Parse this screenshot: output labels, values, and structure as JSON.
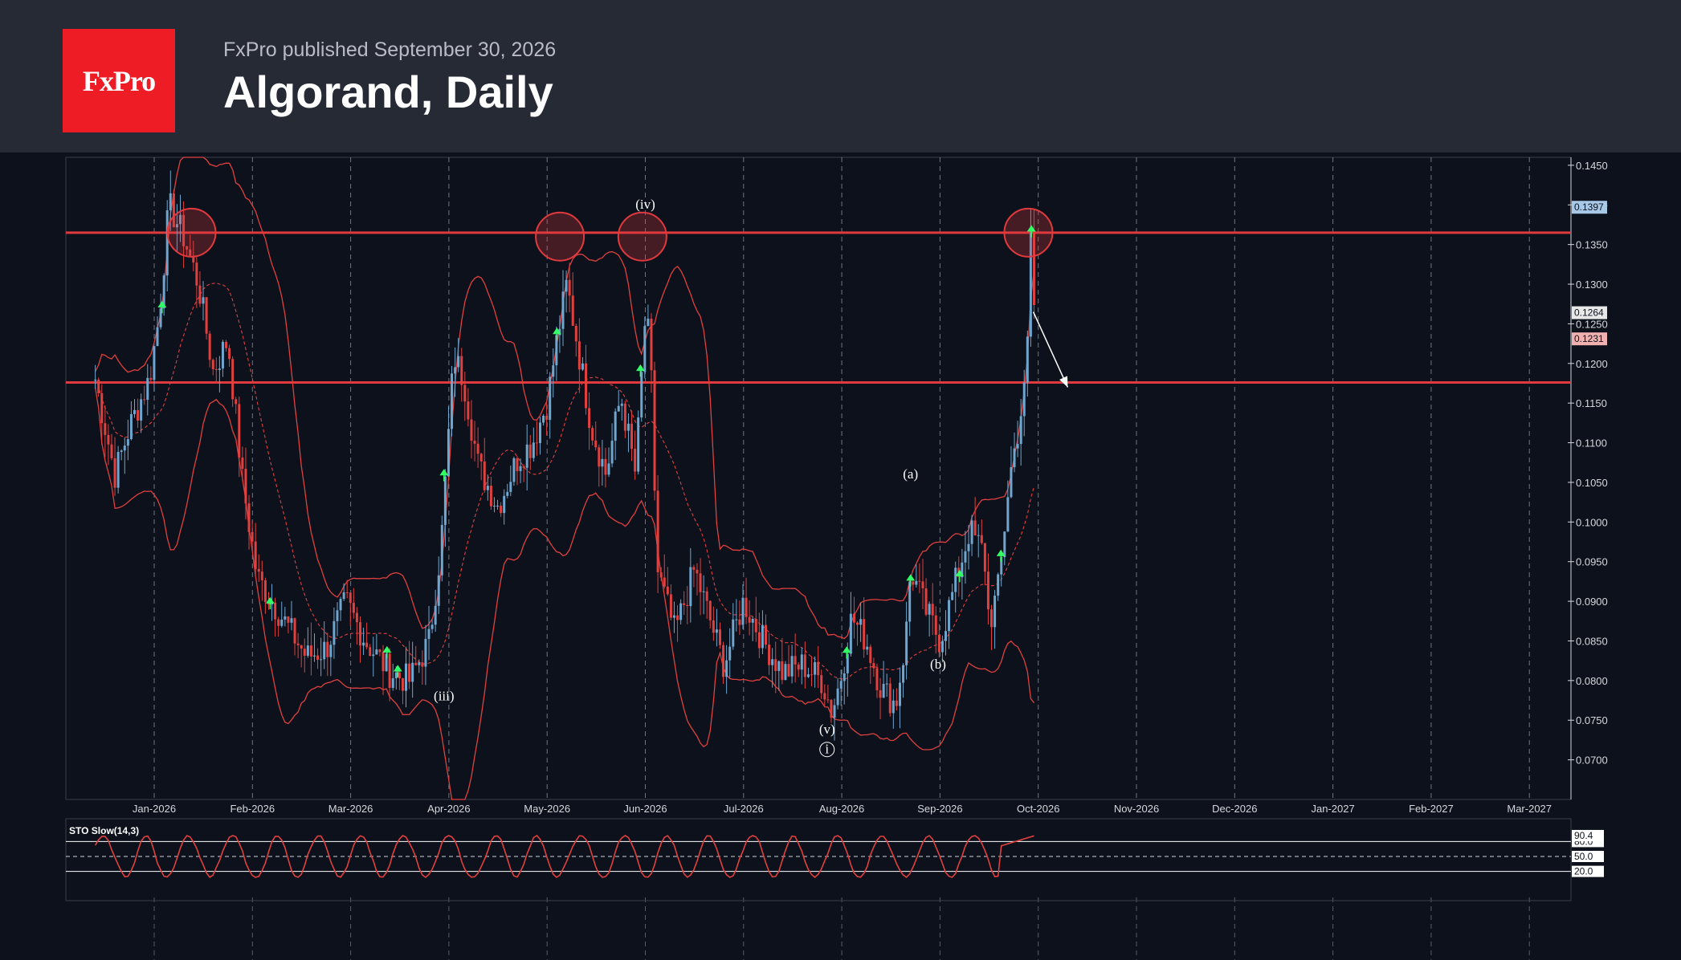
{
  "header": {
    "logo_text": "FxPro",
    "published": "FxPro published September 30, 2026",
    "title": "Algorand, Daily"
  },
  "colors": {
    "background": "#0c111b",
    "header": "#262a35",
    "brand_red": "#ee1c25",
    "level_line": "#e03a3e",
    "candle_up": "#6fa6cf",
    "candle_down": "#e0413f",
    "band": "#e0413f",
    "signal_arrow": "#33ff66"
  },
  "chart_data": {
    "type": "candlestick",
    "ylim": [
      0.065,
      0.146
    ],
    "price_ticks": [
      "0.1450",
      "0.1400",
      "0.1350",
      "0.1300",
      "0.1250",
      "0.1200",
      "0.1150",
      "0.1100",
      "0.1050",
      "0.1000",
      "0.0950",
      "0.0900",
      "0.0850",
      "0.0800",
      "0.0750",
      "0.0700"
    ],
    "price_tags": [
      {
        "label": "0.1397",
        "value": 0.1397
      },
      {
        "label": "0.1264",
        "value": 0.1264
      },
      {
        "label": "0.1231",
        "value": 0.1231
      }
    ],
    "x_ticks": [
      "Jan-2026",
      "Feb-2026",
      "Mar-2026",
      "Apr-2026",
      "May-2026",
      "Jun-2026",
      "Jul-2026",
      "Aug-2026",
      "Sep-2026",
      "Oct-2026",
      "Nov-2026",
      "Dec-2026",
      "Jan-2027",
      "Feb-2027",
      "Mar-2027"
    ],
    "levels": [
      0.1365,
      0.1176
    ],
    "wave_labels": [
      {
        "text": "(iv)",
        "date_index": 5.0,
        "value": 0.1395
      },
      {
        "text": "(iii)",
        "date_index": 2.95,
        "value": 0.0775
      },
      {
        "text": "(v)",
        "date_index": 6.85,
        "value": 0.0733
      },
      {
        "text": "i",
        "date_index": 6.85,
        "value": 0.0708
      },
      {
        "text": "(a)",
        "date_index": 7.7,
        "value": 0.1055
      },
      {
        "text": "(b)",
        "date_index": 7.98,
        "value": 0.0815
      }
    ],
    "resistance_circles": [
      {
        "date_index": 0.38,
        "value": 0.1365
      },
      {
        "date_index": 4.13,
        "value": 0.136
      },
      {
        "date_index": 4.97,
        "value": 0.136
      },
      {
        "date_index": 8.9,
        "value": 0.1365
      }
    ],
    "projection_arrow": {
      "from": {
        "date_index": 8.95,
        "value": 0.1265
      },
      "to": {
        "date_index": 9.3,
        "value": 0.117
      }
    },
    "anchors": [
      [
        -0.6,
        0.118
      ],
      [
        -0.5,
        0.112
      ],
      [
        -0.4,
        0.106
      ],
      [
        -0.25,
        0.112
      ],
      [
        -0.05,
        0.118
      ],
      [
        0.05,
        0.126
      ],
      [
        0.15,
        0.14
      ],
      [
        0.3,
        0.136
      ],
      [
        0.45,
        0.13
      ],
      [
        0.6,
        0.119
      ],
      [
        0.75,
        0.123
      ],
      [
        0.9,
        0.105
      ],
      [
        1.05,
        0.093
      ],
      [
        1.3,
        0.088
      ],
      [
        1.55,
        0.083
      ],
      [
        1.75,
        0.084
      ],
      [
        1.95,
        0.09
      ],
      [
        2.15,
        0.085
      ],
      [
        2.4,
        0.081
      ],
      [
        2.6,
        0.08
      ],
      [
        2.8,
        0.085
      ],
      [
        2.92,
        0.097
      ],
      [
        3.05,
        0.121
      ],
      [
        3.15,
        0.118
      ],
      [
        3.3,
        0.107
      ],
      [
        3.5,
        0.102
      ],
      [
        3.7,
        0.108
      ],
      [
        3.85,
        0.11
      ],
      [
        4.0,
        0.115
      ],
      [
        4.1,
        0.123
      ],
      [
        4.2,
        0.13
      ],
      [
        4.3,
        0.123
      ],
      [
        4.45,
        0.112
      ],
      [
        4.6,
        0.106
      ],
      [
        4.75,
        0.116
      ],
      [
        4.9,
        0.106
      ],
      [
        5.0,
        0.126
      ],
      [
        5.05,
        0.122
      ],
      [
        5.12,
        0.094
      ],
      [
        5.3,
        0.086
      ],
      [
        5.5,
        0.094
      ],
      [
        5.6,
        0.09
      ],
      [
        5.8,
        0.082
      ],
      [
        6.0,
        0.09
      ],
      [
        6.2,
        0.085
      ],
      [
        6.4,
        0.081
      ],
      [
        6.6,
        0.082
      ],
      [
        6.8,
        0.08
      ],
      [
        6.9,
        0.076
      ],
      [
        7.0,
        0.081
      ],
      [
        7.1,
        0.088
      ],
      [
        7.25,
        0.085
      ],
      [
        7.4,
        0.079
      ],
      [
        7.55,
        0.077
      ],
      [
        7.65,
        0.085
      ],
      [
        7.7,
        0.094
      ],
      [
        7.85,
        0.089
      ],
      [
        8.0,
        0.085
      ],
      [
        8.15,
        0.092
      ],
      [
        8.3,
        0.099
      ],
      [
        8.45,
        0.096
      ],
      [
        8.5,
        0.087
      ],
      [
        8.6,
        0.092
      ],
      [
        8.7,
        0.105
      ],
      [
        8.8,
        0.112
      ],
      [
        8.88,
        0.118
      ],
      [
        8.93,
        0.139
      ],
      [
        8.96,
        0.126
      ]
    ],
    "oscillator": {
      "label": "STO Slow(14,3)",
      "levels": [
        80,
        50,
        20
      ],
      "level_labels": [
        "80.0",
        "50.0",
        "20.0"
      ],
      "current_label": "90.4",
      "current": 90.4
    }
  }
}
